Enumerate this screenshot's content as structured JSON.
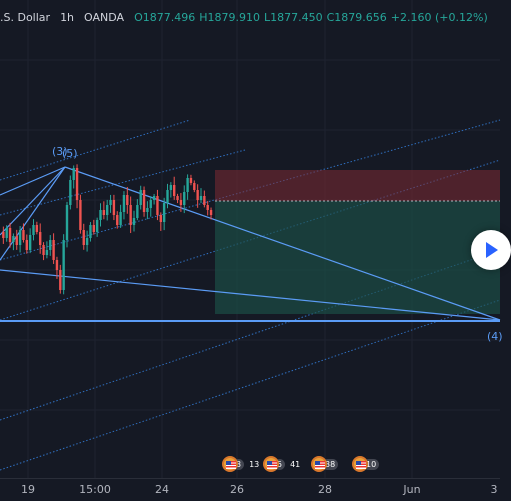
{
  "header": {
    "symbol": ".S. Dollar",
    "interval": "1h",
    "source": "OANDA",
    "open": "O1877.496",
    "high": "H1879.910",
    "low": "L1877.450",
    "close": "C1879.656",
    "change": "+2.160 (+0.12%)"
  },
  "time_axis": [
    "19",
    "15:00",
    "24",
    "26",
    "28",
    "Jun",
    "3"
  ],
  "wave_labels": [
    "(3)",
    "(5)",
    "(4)"
  ],
  "events": [
    {
      "count": "3",
      "extra": "13"
    },
    {
      "count": "5",
      "extra": "41"
    },
    {
      "count": "38",
      "extra": ""
    },
    {
      "count": "10",
      "extra": ""
    }
  ],
  "colors": {
    "background": "#151924",
    "bull_candle": "#26a69a",
    "bear_candle": "#ef5350",
    "trendline": "#5b9cf6",
    "stop_zone": "#7d2a33",
    "target_zone": "#1b5148"
  },
  "icons": {
    "play": "play-icon",
    "event_flag": "us-flag-icon"
  }
}
